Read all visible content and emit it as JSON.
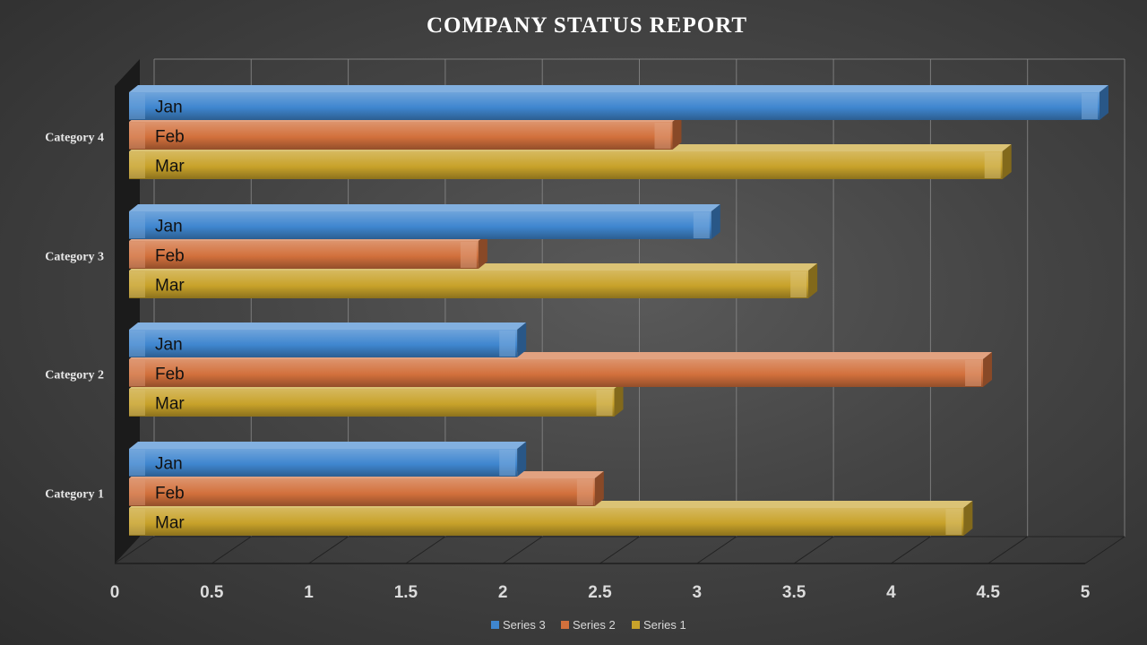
{
  "colors": {
    "series1": "#c8a22a",
    "series2": "#d2703c",
    "series3": "#3f86cf",
    "grid": "#8a8a8a",
    "text": "#e6e6e6",
    "title": "#ffffff"
  },
  "chart_data": {
    "type": "bar",
    "orientation": "horizontal",
    "style": "3d-clustered",
    "title": "COMPANY STATUS REPORT",
    "xlabel": "",
    "ylabel": "",
    "xlim": [
      0,
      5
    ],
    "x_ticks": [
      "0",
      "0.5",
      "1",
      "1.5",
      "2",
      "2.5",
      "3",
      "3.5",
      "4",
      "4.5",
      "5"
    ],
    "grid": true,
    "legend": "bottom",
    "categories": [
      "Category 1",
      "Category 2",
      "Category 3",
      "Category 4"
    ],
    "series": [
      {
        "name": "Series 3",
        "color": "#3f86cf",
        "data_label": "Jan",
        "values": [
          2.0,
          2.0,
          3.0,
          5.0
        ]
      },
      {
        "name": "Series 2",
        "color": "#d2703c",
        "data_label": "Feb",
        "values": [
          2.4,
          4.4,
          1.8,
          2.8
        ]
      },
      {
        "name": "Series 1",
        "color": "#c8a22a",
        "data_label": "Mar",
        "values": [
          4.3,
          2.5,
          3.5,
          4.5
        ]
      }
    ]
  }
}
